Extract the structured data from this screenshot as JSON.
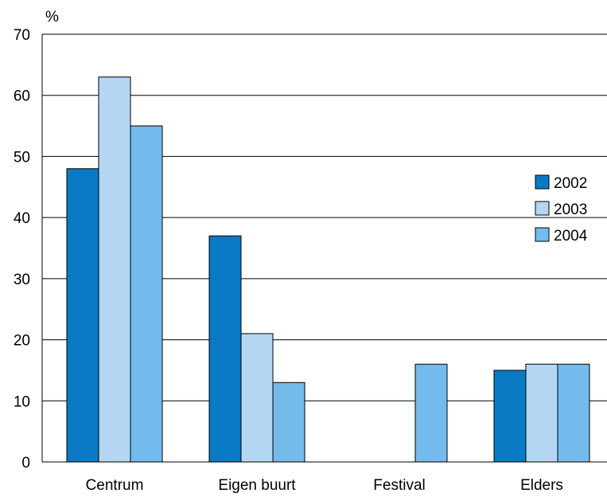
{
  "chart_data": {
    "type": "bar",
    "ylabel": "%",
    "ylim": [
      0,
      70
    ],
    "yticks": [
      0,
      10,
      20,
      30,
      40,
      50,
      60,
      70
    ],
    "grid": true,
    "legend_position": "right",
    "categories": [
      "Centrum",
      "Eigen buurt",
      "Festival",
      "Elders"
    ],
    "series": [
      {
        "name": "2002",
        "color": "#0a7ac4",
        "values": [
          48,
          37,
          0,
          15
        ]
      },
      {
        "name": "2003",
        "color": "#b3d6f3",
        "values": [
          63,
          21,
          0,
          16
        ]
      },
      {
        "name": "2004",
        "color": "#72bbec",
        "values": [
          55,
          13,
          16,
          16
        ]
      }
    ]
  }
}
